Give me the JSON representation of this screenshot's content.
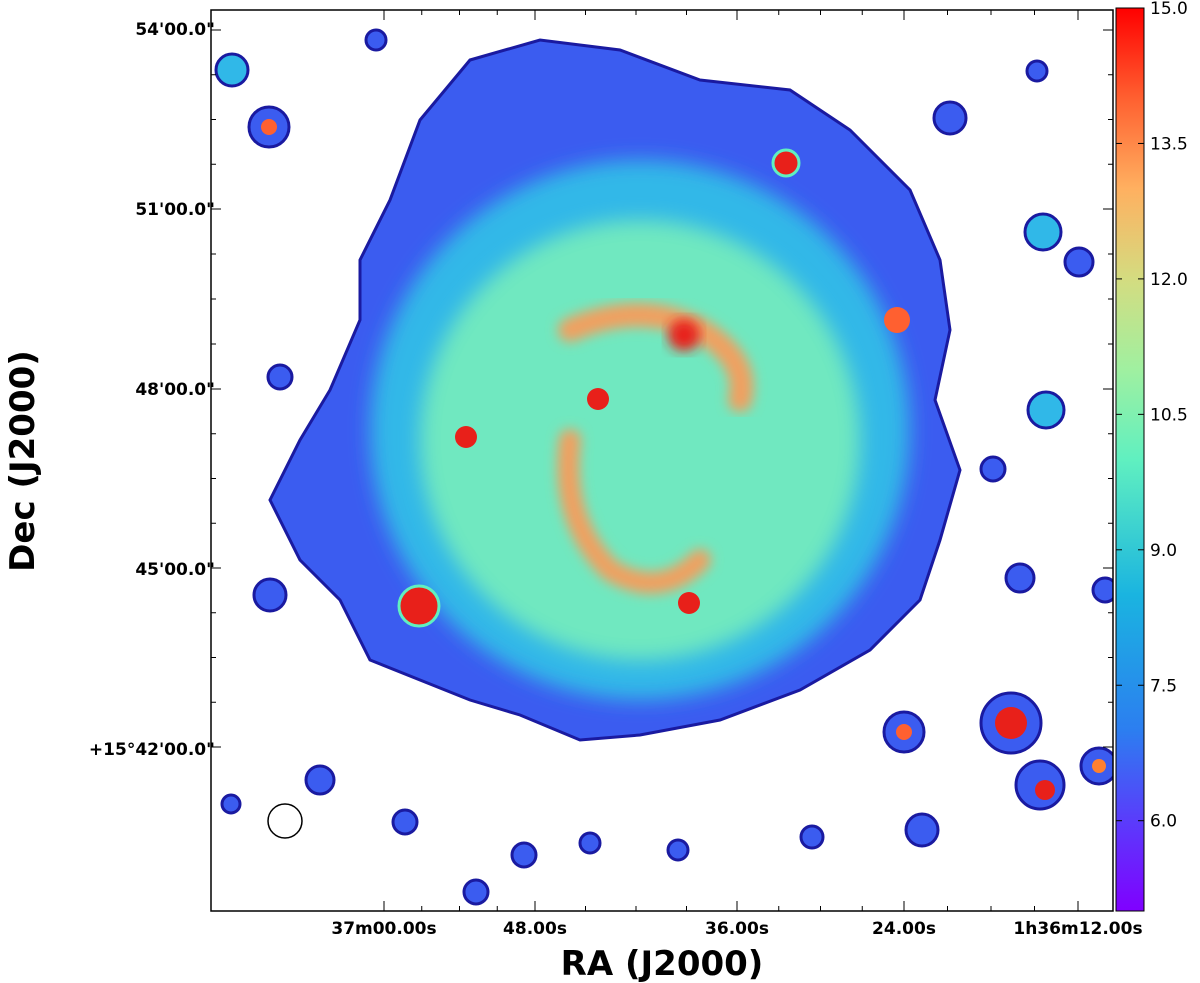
{
  "chart_data": {
    "type": "heatmap",
    "subject": "galaxy map (sky image)",
    "xlabel": "RA (J2000)",
    "ylabel": "Dec (J2000)",
    "x_ticks": [
      "37m00.00s",
      "48.00s",
      "36.00s",
      "24.00s",
      "1h36m12.00s"
    ],
    "y_ticks": [
      "54'00.0\"",
      "51'00.0\"",
      "48'00.0\"",
      "45'00.0\"",
      "+15°42'00.0\""
    ],
    "colorbar": {
      "colormap": "rainbow",
      "range": [
        5.0,
        15.0
      ],
      "tick_labels": [
        "6.0",
        "7.5",
        "9.0",
        "10.5",
        "12.0",
        "13.5",
        "15.0"
      ],
      "ticks": [
        6.0,
        7.5,
        9.0,
        10.5,
        12.0,
        13.5,
        15.0
      ]
    },
    "features": {
      "beam": "circle",
      "background_threshold": 5.5
    }
  },
  "colors": {
    "background": "#ffffff",
    "frame": "#000000"
  }
}
